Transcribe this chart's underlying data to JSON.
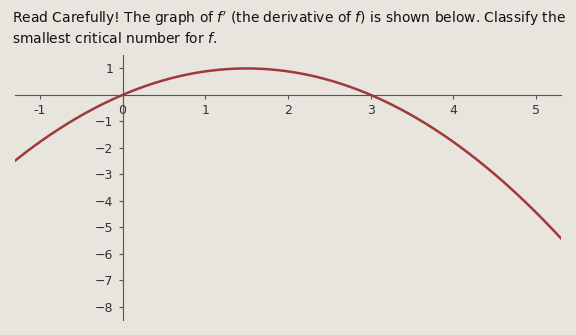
{
  "title_text": "Read Carefully! The graph of $f'$ (the derivative of $f$) is shown below. Classify the smallest critical number for $f$.",
  "background_color": "#e8e4de",
  "curve_color": "#a0393a",
  "curve_linewidth": 1.8,
  "xlim": [
    -1.3,
    5.3
  ],
  "ylim": [
    -8.5,
    1.5
  ],
  "xticks": [
    -1,
    0,
    1,
    2,
    3,
    4,
    5
  ],
  "yticks": [
    -8,
    -7,
    -6,
    -5,
    -4,
    -3,
    -2,
    -1,
    1
  ],
  "axis_color": "#555555",
  "tick_fontsize": 9,
  "title_fontsize": 10,
  "a": -1,
  "b": 3,
  "scale": 1
}
